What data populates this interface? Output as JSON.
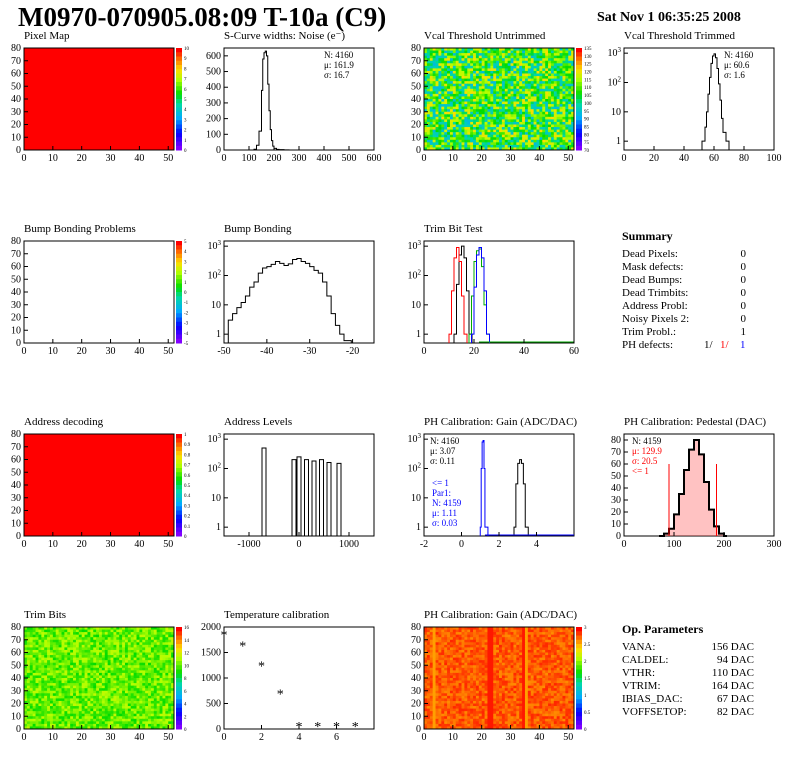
{
  "title": "M0970-070905.08:09 T-10a (C9)",
  "date": "Sat Nov  1 06:35:25 2008",
  "chart_data": [
    {
      "id": "pixel_map",
      "type": "heatmap",
      "title": "Pixel Map",
      "xlim": [
        0,
        52
      ],
      "ylim": [
        0,
        80
      ],
      "xticks": [
        0,
        10,
        20,
        30,
        40,
        50
      ],
      "yticks": [
        0,
        10,
        20,
        30,
        40,
        50,
        60,
        70,
        80
      ],
      "fill": "uniform",
      "fill_color": "#ff0000",
      "zscale_labels": [
        "0",
        "1",
        "2",
        "3",
        "4",
        "5",
        "6",
        "7",
        "8",
        "9",
        "10"
      ],
      "zscale_max": "10"
    },
    {
      "id": "scurve",
      "type": "line",
      "title": "S-Curve widths: Noise (e⁻)",
      "xlim": [
        0,
        600
      ],
      "ylim": [
        0,
        650
      ],
      "xticks": [
        0,
        100,
        200,
        300,
        400,
        500,
        600
      ],
      "yticks": [
        0,
        100,
        200,
        300,
        400,
        500,
        600
      ],
      "x": [
        100,
        120,
        130,
        140,
        150,
        155,
        160,
        165,
        170,
        175,
        180,
        185,
        190,
        195,
        200,
        210,
        220,
        240,
        260
      ],
      "values": [
        0,
        5,
        30,
        120,
        380,
        580,
        620,
        630,
        600,
        420,
        250,
        130,
        60,
        25,
        10,
        4,
        2,
        1,
        0
      ],
      "stats": [
        {
          "label": "N:",
          "value": "4160"
        },
        {
          "label": "μ:",
          "value": "161.9"
        },
        {
          "label": "σ:",
          "value": "16.7"
        }
      ]
    },
    {
      "id": "vcal_untrimmed",
      "type": "heatmap",
      "title": "Vcal Threshold Untrimmed",
      "xlim": [
        0,
        52
      ],
      "ylim": [
        0,
        80
      ],
      "xticks": [
        0,
        10,
        20,
        30,
        40,
        50
      ],
      "yticks": [
        0,
        10,
        20,
        30,
        40,
        50,
        60,
        70,
        80
      ],
      "fill": "noisy",
      "palette_range": [
        0.35,
        0.8
      ],
      "zscale_labels": [
        "70",
        "75",
        "80",
        "85",
        "90",
        "95",
        "100",
        "105",
        "110",
        "115",
        "120",
        "125",
        "130",
        "135"
      ]
    },
    {
      "id": "vcal_trimmed",
      "type": "line",
      "log_y": true,
      "title": "Vcal Threshold Trimmed",
      "xlim": [
        0,
        100
      ],
      "ylim": [
        0.5,
        1500
      ],
      "xticks": [
        0,
        20,
        40,
        60,
        80,
        100
      ],
      "yticks": [
        1,
        10,
        100,
        1000
      ],
      "x": [
        50,
        52,
        54,
        55,
        56,
        57,
        58,
        59,
        60,
        61,
        62,
        63,
        64,
        65,
        66,
        68,
        70
      ],
      "values": [
        0,
        1,
        3,
        10,
        40,
        150,
        450,
        800,
        950,
        700,
        300,
        90,
        25,
        6,
        2,
        1,
        0
      ],
      "stats": [
        {
          "label": "N:",
          "value": "4160"
        },
        {
          "label": "μ:",
          "value": "60.6"
        },
        {
          "label": "σ:",
          "value": "1.6"
        }
      ]
    },
    {
      "id": "bump_problems",
      "type": "heatmap",
      "title": "Bump Bonding Problems",
      "xlim": [
        0,
        52
      ],
      "ylim": [
        0,
        80
      ],
      "xticks": [
        0,
        10,
        20,
        30,
        40,
        50
      ],
      "yticks": [
        0,
        10,
        20,
        30,
        40,
        50,
        60,
        70,
        80
      ],
      "fill": "none",
      "zscale_labels": [
        "-5",
        "-4",
        "-3",
        "-2",
        "-1",
        "0",
        "1",
        "2",
        "3",
        "4",
        "5"
      ]
    },
    {
      "id": "bump_bonding",
      "type": "line",
      "log_y": true,
      "title": "Bump Bonding",
      "xlim": [
        -50,
        -15
      ],
      "ylim": [
        0.5,
        1500
      ],
      "xticks": [
        -50,
        -40,
        -30,
        -20
      ],
      "yticks": [
        1,
        10,
        100,
        1000
      ],
      "x": [
        -49,
        -48,
        -47,
        -46,
        -45,
        -44,
        -43,
        -42,
        -41,
        -40,
        -39,
        -38,
        -37,
        -36,
        -35,
        -34,
        -33,
        -32,
        -31,
        -30,
        -29,
        -28,
        -27,
        -26,
        -25,
        -24,
        -23,
        -22,
        -21
      ],
      "values": [
        3,
        5,
        8,
        12,
        20,
        40,
        60,
        120,
        180,
        200,
        240,
        300,
        260,
        220,
        250,
        350,
        380,
        300,
        260,
        200,
        150,
        120,
        60,
        20,
        5,
        2,
        1,
        0.6,
        0.6
      ]
    },
    {
      "id": "trim_bit_test",
      "type": "line",
      "log_y": true,
      "title": "Trim Bit Test",
      "xlim": [
        0,
        60
      ],
      "ylim": [
        0.5,
        1500
      ],
      "xticks": [
        0,
        20,
        40,
        60
      ],
      "yticks": [
        1,
        10,
        100,
        1000
      ],
      "series": [
        {
          "color": "#000000",
          "x": [
            12,
            13,
            14,
            15,
            16,
            17,
            18
          ],
          "values": [
            1,
            50,
            500,
            1000,
            400,
            30,
            1
          ]
        },
        {
          "color": "#ff0000",
          "x": [
            10,
            11,
            12,
            13,
            14,
            15,
            16
          ],
          "values": [
            1,
            30,
            400,
            900,
            300,
            20,
            1
          ]
        },
        {
          "color": "#00aa00",
          "x": [
            18,
            19,
            20,
            21,
            22,
            23,
            24,
            25
          ],
          "values": [
            1,
            20,
            300,
            700,
            800,
            200,
            10,
            1
          ]
        },
        {
          "color": "#0000ff",
          "x": [
            19,
            20,
            21,
            22,
            23,
            24,
            25
          ],
          "values": [
            1,
            40,
            500,
            900,
            400,
            30,
            1
          ]
        }
      ]
    },
    {
      "id": "address_decoding",
      "type": "heatmap",
      "title": "Address decoding",
      "xlim": [
        0,
        52
      ],
      "ylim": [
        0,
        80
      ],
      "xticks": [
        0,
        10,
        20,
        30,
        40,
        50
      ],
      "yticks": [
        0,
        10,
        20,
        30,
        40,
        50,
        60,
        70,
        80
      ],
      "fill": "uniform",
      "fill_color": "#ff0000",
      "zscale_labels": [
        "0",
        "0.1",
        "0.2",
        "0.3",
        "0.4",
        "0.5",
        "0.6",
        "0.7",
        "0.8",
        "0.9",
        "1"
      ]
    },
    {
      "id": "address_levels",
      "type": "line",
      "log_y": true,
      "title": "Address Levels",
      "xlim": [
        -1500,
        1500
      ],
      "ylim": [
        0.5,
        1500
      ],
      "xticks": [
        -1000,
        0,
        1000
      ],
      "yticks": [
        1,
        10,
        100,
        1000
      ],
      "peaks": [
        -700,
        -100,
        0,
        150,
        300,
        450,
        600,
        800
      ],
      "peak_values": [
        500,
        200,
        250,
        200,
        180,
        200,
        160,
        150
      ]
    },
    {
      "id": "ph_gain",
      "type": "line",
      "log_y": true,
      "title": "PH Calibration: Gain (ADC/DAC)",
      "xlim": [
        -2,
        6
      ],
      "ylim": [
        0.5,
        1500
      ],
      "xticks": [
        -2,
        0,
        2,
        4
      ],
      "yticks": [
        1,
        10,
        100,
        1000
      ],
      "series": [
        {
          "color": "#000000",
          "x": [
            2.8,
            2.9,
            3.0,
            3.1,
            3.2,
            3.3,
            3.4
          ],
          "values": [
            1,
            30,
            150,
            200,
            150,
            30,
            1
          ]
        },
        {
          "color": "#0000ff",
          "x": [
            1.0,
            1.05,
            1.1,
            1.15,
            1.2,
            1.25
          ],
          "values": [
            1,
            100,
            800,
            900,
            100,
            1
          ]
        }
      ],
      "stats": [
        {
          "label": "N:",
          "value": "4160"
        },
        {
          "label": "μ:",
          "value": "3.07"
        },
        {
          "label": "σ:",
          "value": "0.11"
        }
      ],
      "stats2": [
        {
          "label": "<= 1",
          "value": ""
        },
        {
          "label": "Par1:",
          "value": ""
        },
        {
          "label": "N:",
          "value": "4159"
        },
        {
          "label": "μ:",
          "value": "1.11"
        },
        {
          "label": "σ:",
          "value": "0.03"
        }
      ]
    },
    {
      "id": "ph_pedestal",
      "type": "line",
      "title": "PH Calibration: Pedestal (DAC)",
      "xlim": [
        0,
        300
      ],
      "ylim": [
        0,
        85
      ],
      "xticks": [
        0,
        100,
        200,
        300
      ],
      "yticks": [
        0,
        10,
        20,
        30,
        40,
        50,
        60,
        70,
        80
      ],
      "x": [
        70,
        80,
        90,
        100,
        110,
        120,
        130,
        140,
        150,
        160,
        170,
        180,
        190,
        200
      ],
      "values": [
        0,
        2,
        6,
        18,
        35,
        55,
        72,
        80,
        68,
        45,
        22,
        8,
        2,
        0
      ],
      "stats": [
        {
          "label": "N:",
          "value": "4159"
        },
        {
          "label": "μ:",
          "value": "129.9"
        },
        {
          "label": "σ:",
          "value": "20.5"
        },
        {
          "label": "<= 1",
          "value": ""
        }
      ]
    },
    {
      "id": "trim_bits",
      "type": "heatmap",
      "title": "Trim Bits",
      "xlim": [
        0,
        52
      ],
      "ylim": [
        0,
        80
      ],
      "xticks": [
        0,
        10,
        20,
        30,
        40,
        50
      ],
      "yticks": [
        0,
        10,
        20,
        30,
        40,
        50,
        60,
        70,
        80
      ],
      "fill": "noisy",
      "palette_range": [
        0.55,
        0.72
      ],
      "zscale_labels": [
        "0",
        "2",
        "4",
        "6",
        "8",
        "10",
        "12",
        "14",
        "16"
      ]
    },
    {
      "id": "temperature",
      "type": "scatter",
      "title": "Temperature calibration",
      "xlim": [
        0,
        8
      ],
      "ylim": [
        0,
        2000
      ],
      "xticks": [
        0,
        2,
        4,
        6
      ],
      "yticks": [
        0,
        500,
        1000,
        1500,
        2000
      ],
      "x": [
        0,
        1,
        2,
        3,
        4,
        5,
        6,
        7
      ],
      "values": [
        1850,
        1640,
        1250,
        700,
        60,
        60,
        60,
        60
      ]
    },
    {
      "id": "ph_gain_map",
      "type": "heatmap",
      "title": "PH Calibration: Gain (ADC/DAC)",
      "xlim": [
        0,
        52
      ],
      "ylim": [
        0,
        80
      ],
      "xticks": [
        0,
        10,
        20,
        30,
        40,
        50
      ],
      "yticks": [
        0,
        10,
        20,
        30,
        40,
        50,
        60,
        70,
        80
      ],
      "fill": "noisy",
      "palette_range": [
        0.88,
        0.97
      ],
      "zscale_labels": [
        "0",
        "0.5",
        "1",
        "1.5",
        "2",
        "2.5",
        "3"
      ]
    }
  ],
  "summary": {
    "title": "Summary",
    "rows": [
      {
        "label": "Dead Pixels:",
        "value": "0"
      },
      {
        "label": "Mask defects:",
        "value": "0"
      },
      {
        "label": "Dead Bumps:",
        "value": "0"
      },
      {
        "label": "Dead Trimbits:",
        "value": "0"
      },
      {
        "label": "Address Probl:",
        "value": "0"
      },
      {
        "label": "Noisy Pixels 2:",
        "value": "0"
      },
      {
        "label": "Trim Probl.:",
        "value": "1"
      }
    ],
    "ph_label": "PH defects:",
    "ph_values": [
      {
        "text": "1/",
        "color": "#000000"
      },
      {
        "text": "1/",
        "color": "#ff0000"
      },
      {
        "text": "1",
        "color": "#0000ff"
      }
    ]
  },
  "op_params": {
    "title": "Op. Parameters",
    "rows": [
      {
        "label": "VANA:",
        "value": "156 DAC"
      },
      {
        "label": "CALDEL:",
        "value": "94 DAC"
      },
      {
        "label": "VTHR:",
        "value": "110 DAC"
      },
      {
        "label": "VTRIM:",
        "value": "164 DAC"
      },
      {
        "label": "IBIAS_DAC:",
        "value": "67 DAC"
      },
      {
        "label": "VOFFSETOP:",
        "value": "82 DAC"
      }
    ]
  }
}
